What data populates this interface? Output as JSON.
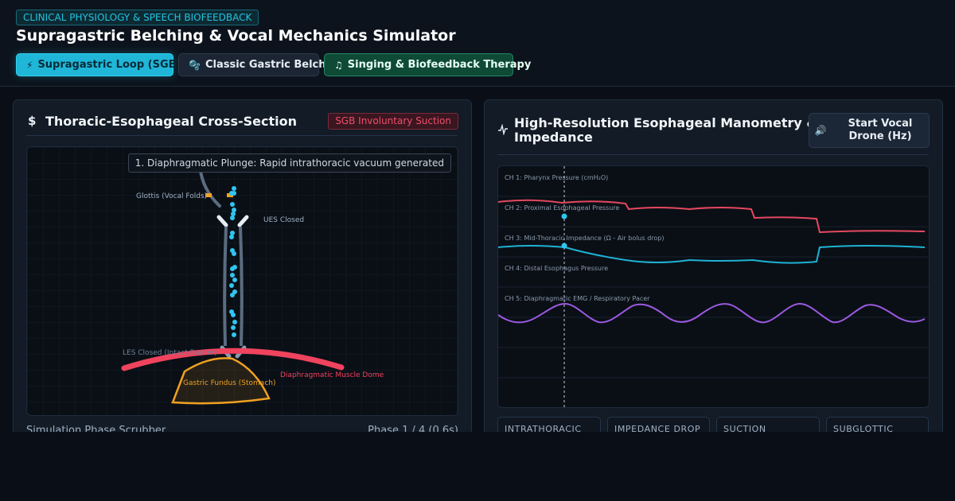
{
  "header": {
    "badge": "CLINICAL PHYSIOLOGY & SPEECH BIOFEEDBACK",
    "title": "Supragastric Belching & Vocal Mechanics Simulator",
    "tabs": [
      {
        "label": "Supragastric Loop (SGB)",
        "icon": "lightning-icon",
        "active": true
      },
      {
        "label": "Classic Gastric Belch",
        "icon": "bubbles-icon",
        "active": false
      },
      {
        "label": "Singing & Biofeedback Therapy",
        "icon": "music-note-icon",
        "active": false
      }
    ]
  },
  "left_panel": {
    "title": "Thoracic-Esophageal Cross-Section",
    "icon": "dollar-sign-icon",
    "badge": "SGB Involuntary Suction",
    "phase_label": "1. Diaphragmatic Plunge: Rapid intrathoracic vacuum generated",
    "labels": {
      "glottis": "Glottis (Vocal Folds)",
      "ues": "UES Closed",
      "les": "LES Closed (Intact Barrier)",
      "diaphragm": "Diaphragmatic Muscle Dome",
      "stomach": "Gastric Fundus (Stomach)"
    },
    "scrubber_label": "Simulation Phase Scrubber",
    "scrubber_phase": "Phase 1 / 4 (0.6s)"
  },
  "right_panel": {
    "title_line1": "High-Resolution Esophageal Manometry &",
    "title_line2": "Impedance",
    "icon": "activity-pulse-icon",
    "drone_button": {
      "line1": "Start Vocal",
      "line2": "Drone (Hz)",
      "icon": "speaker-icon"
    },
    "channels": [
      "CH 1: Pharynx Pressure (cmH₂O)",
      "CH 2: Proximal Esophageal Pressure",
      "CH 3: Mid-Thoracic Impedance (Ω - Air bolus drop)",
      "CH 4: Distal Esophagus Pressure",
      "CH 5: Diaphragmatic EMG / Respiratory Pacer"
    ],
    "metrics": [
      {
        "label": "INTRATHORACIC"
      },
      {
        "label": "IMPEDANCE DROP"
      },
      {
        "label": "SUCTION"
      },
      {
        "label": "SUBGLOTTIC"
      }
    ]
  },
  "colors": {
    "accent": "#1fb6d8",
    "pressure": "#e5485f",
    "impedance": "#1fb2d4",
    "emg": "#9b59e0",
    "stomach": "#f0a020",
    "diaphragm": "#f0435e"
  }
}
